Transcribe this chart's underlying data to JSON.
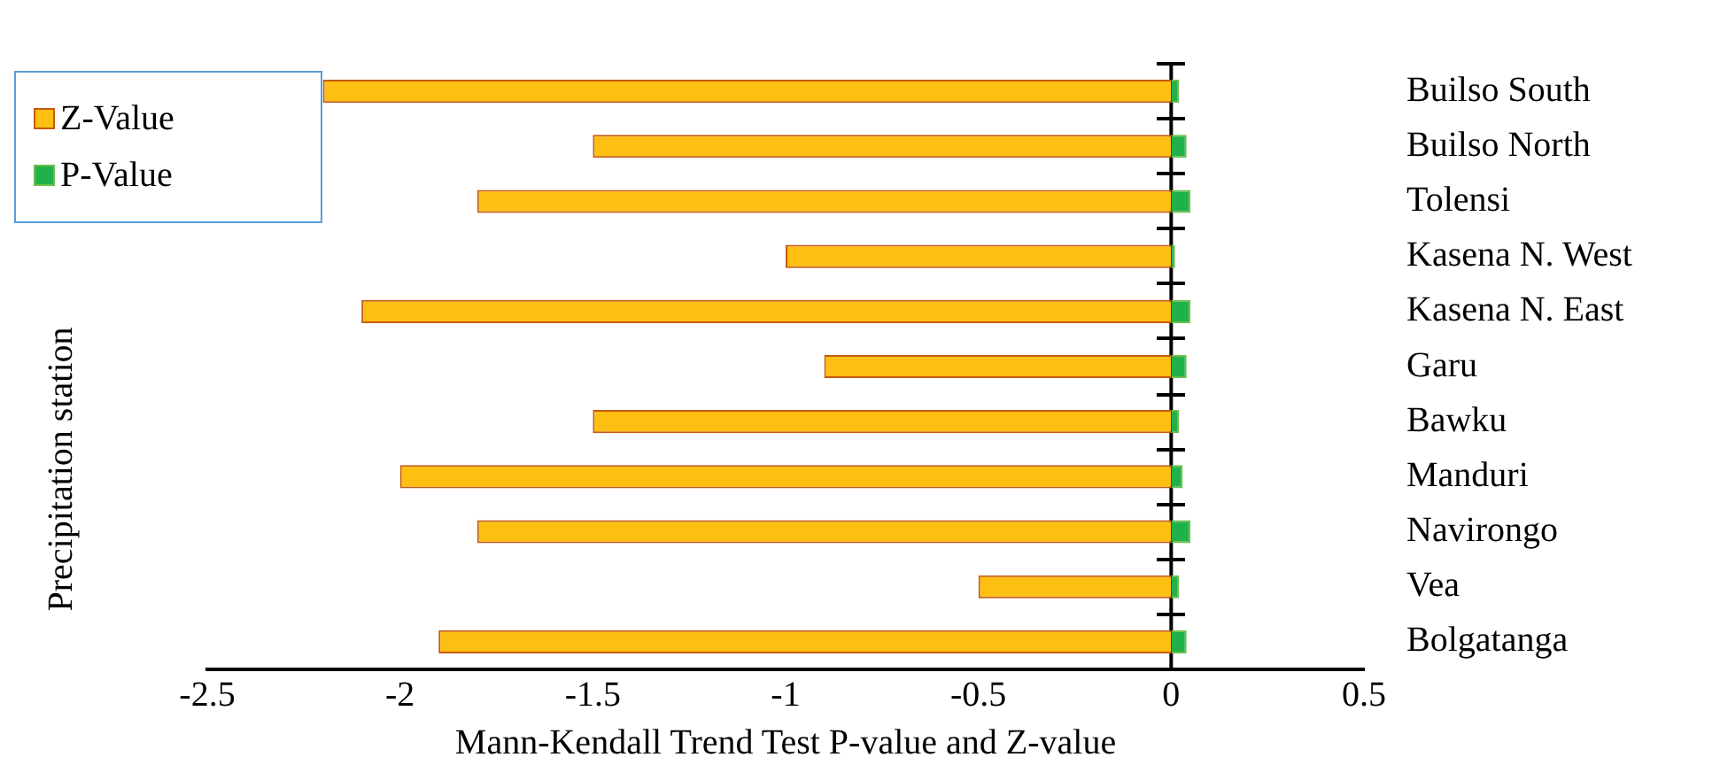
{
  "chart_data": {
    "type": "bar",
    "orientation": "horizontal",
    "xlabel": "Mann-Kendall Trend Test P-value and Z-value",
    "ylabel": "Precipitation station",
    "categories": [
      "Builso South",
      "Builso North",
      "Tolensi",
      "Kasena N. West",
      "Kasena N. East",
      "Garu",
      "Bawku",
      "Manduri",
      "Navirongo",
      "Vea",
      "Bolgatanga"
    ],
    "series": [
      {
        "name": "Z-Value",
        "color": "#fdbf12",
        "values": [
          -2.2,
          -1.5,
          -1.8,
          -1.0,
          -2.1,
          -0.9,
          -1.5,
          -2.0,
          -1.8,
          -0.5,
          -1.9
        ]
      },
      {
        "name": "P-Value",
        "color": "#21b14b",
        "values": [
          0.02,
          0.04,
          0.05,
          0.01,
          0.05,
          0.04,
          0.02,
          0.03,
          0.05,
          0.02,
          0.04
        ]
      }
    ],
    "stacked": true,
    "ref_lines": [
      {
        "axis": "x",
        "value": 0,
        "color": "#000000"
      }
    ],
    "xlim": [
      -2.5,
      0.5
    ],
    "xticks": [
      -2.5,
      -2,
      -1.5,
      -1,
      -0.5,
      0,
      0.5
    ],
    "grid": false,
    "legend": "top left"
  }
}
